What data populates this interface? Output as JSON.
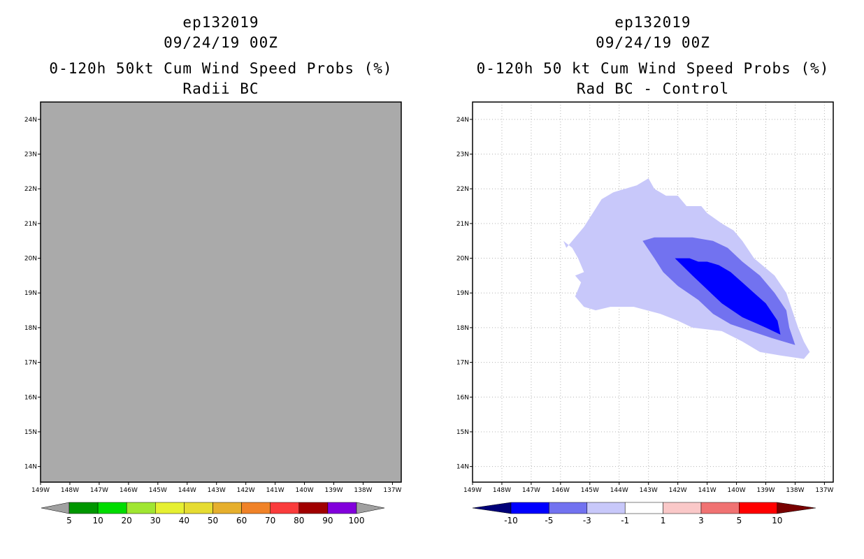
{
  "chart_data": [
    {
      "type": "heatmap",
      "title": {
        "storm": "ep132019",
        "date": "09/24/19 00Z",
        "product": "0-120h 50kt Cum Wind Speed Probs (%)",
        "subtitle": "Radii BC"
      },
      "xlim": [
        -149.0,
        -136.7
      ],
      "ylim": [
        13.55,
        24.5
      ],
      "xticks": [
        "149W",
        "148W",
        "147W",
        "146W",
        "145W",
        "144W",
        "143W",
        "142W",
        "141W",
        "140W",
        "139W",
        "138W",
        "137W"
      ],
      "yticks": [
        "24N",
        "23N",
        "22N",
        "21N",
        "20N",
        "19N",
        "18N",
        "17N",
        "16N",
        "15N",
        "14N"
      ],
      "field_note": "Entire domain shaded gray (no data)",
      "field_color": "#aaaaaa",
      "colorbar": {
        "labels": [
          "5",
          "10",
          "20",
          "30",
          "40",
          "50",
          "60",
          "70",
          "80",
          "90",
          "100"
        ],
        "colors": [
          "#a0a0a0",
          "#009600",
          "#00dc00",
          "#a0e632",
          "#e6f032",
          "#e6dc32",
          "#e6af2d",
          "#f08228",
          "#fa3c3c",
          "#a00000",
          "#8200dc",
          "#a0a0a0"
        ]
      }
    },
    {
      "type": "heatmap",
      "title": {
        "storm": "ep132019",
        "date": "09/24/19 00Z",
        "product": "0-120h 50 kt Cum Wind Speed Probs (%)",
        "subtitle": "Rad BC - Control"
      },
      "xlim": [
        -149.0,
        -136.7
      ],
      "ylim": [
        13.55,
        24.5
      ],
      "grid": true,
      "xticks": [
        "149W",
        "148W",
        "147W",
        "146W",
        "145W",
        "144W",
        "143W",
        "142W",
        "141W",
        "140W",
        "139W",
        "138W",
        "137W"
      ],
      "yticks": [
        "24N",
        "23N",
        "22N",
        "21N",
        "20N",
        "19N",
        "18N",
        "17N",
        "16N",
        "15N",
        "14N"
      ],
      "contours": [
        {
          "level": "-3 to -1",
          "color": "#c8c8fa",
          "lonlat": [
            [
              -145.9,
              20.5
            ],
            [
              -145.8,
              20.3
            ],
            [
              -145.6,
              20.5
            ],
            [
              -145.2,
              20.9
            ],
            [
              -144.9,
              21.3
            ],
            [
              -144.6,
              21.7
            ],
            [
              -144.2,
              21.9
            ],
            [
              -143.8,
              22.0
            ],
            [
              -143.4,
              22.1
            ],
            [
              -143.0,
              22.3
            ],
            [
              -142.8,
              22.0
            ],
            [
              -142.4,
              21.8
            ],
            [
              -142.0,
              21.8
            ],
            [
              -141.7,
              21.5
            ],
            [
              -141.2,
              21.5
            ],
            [
              -141.0,
              21.3
            ],
            [
              -140.5,
              21.0
            ],
            [
              -140.1,
              20.8
            ],
            [
              -139.8,
              20.5
            ],
            [
              -139.4,
              20.0
            ],
            [
              -138.7,
              19.5
            ],
            [
              -138.3,
              19.0
            ],
            [
              -138.1,
              18.5
            ],
            [
              -137.9,
              18.0
            ],
            [
              -137.7,
              17.6
            ],
            [
              -137.5,
              17.3
            ],
            [
              -137.7,
              17.1
            ],
            [
              -138.5,
              17.2
            ],
            [
              -139.2,
              17.3
            ],
            [
              -139.8,
              17.6
            ],
            [
              -140.5,
              17.9
            ],
            [
              -141.5,
              18.0
            ],
            [
              -142.0,
              18.2
            ],
            [
              -142.6,
              18.4
            ],
            [
              -143.5,
              18.6
            ],
            [
              -144.3,
              18.6
            ],
            [
              -144.8,
              18.5
            ],
            [
              -145.2,
              18.6
            ],
            [
              -145.5,
              18.9
            ],
            [
              -145.3,
              19.3
            ],
            [
              -145.5,
              19.5
            ],
            [
              -145.2,
              19.6
            ],
            [
              -145.4,
              20.0
            ],
            [
              -145.6,
              20.3
            ]
          ]
        },
        {
          "level": "-5 to -3",
          "color": "#7272f0",
          "lonlat": [
            [
              -143.2,
              20.5
            ],
            [
              -142.8,
              20.6
            ],
            [
              -142.2,
              20.6
            ],
            [
              -141.5,
              20.6
            ],
            [
              -140.8,
              20.5
            ],
            [
              -140.3,
              20.3
            ],
            [
              -139.8,
              19.9
            ],
            [
              -139.2,
              19.5
            ],
            [
              -138.7,
              19.0
            ],
            [
              -138.3,
              18.5
            ],
            [
              -138.2,
              18.0
            ],
            [
              -138.0,
              17.5
            ],
            [
              -138.8,
              17.7
            ],
            [
              -139.5,
              17.9
            ],
            [
              -140.2,
              18.1
            ],
            [
              -140.8,
              18.4
            ],
            [
              -141.3,
              18.8
            ],
            [
              -142.0,
              19.2
            ],
            [
              -142.5,
              19.6
            ],
            [
              -142.8,
              20.0
            ]
          ]
        },
        {
          "level": "-10 to -5",
          "color": "#0000ff",
          "lonlat": [
            [
              -142.1,
              20.0
            ],
            [
              -141.6,
              20.0
            ],
            [
              -141.3,
              19.9
            ],
            [
              -141.0,
              19.9
            ],
            [
              -140.6,
              19.8
            ],
            [
              -140.2,
              19.6
            ],
            [
              -139.8,
              19.3
            ],
            [
              -139.4,
              19.0
            ],
            [
              -139.0,
              18.7
            ],
            [
              -138.6,
              18.2
            ],
            [
              -138.5,
              17.8
            ],
            [
              -139.0,
              18.0
            ],
            [
              -139.8,
              18.3
            ],
            [
              -140.5,
              18.7
            ],
            [
              -141.0,
              19.1
            ],
            [
              -141.5,
              19.5
            ]
          ]
        }
      ],
      "colorbar": {
        "labels": [
          "-10",
          "-5",
          "-3",
          "-1",
          "1",
          "3",
          "5",
          "10"
        ],
        "colors": [
          "#000078",
          "#0000ff",
          "#7272f0",
          "#c8c8fa",
          "#ffffff",
          "#fac8c8",
          "#f07272",
          "#ff0000",
          "#780000"
        ]
      }
    }
  ]
}
